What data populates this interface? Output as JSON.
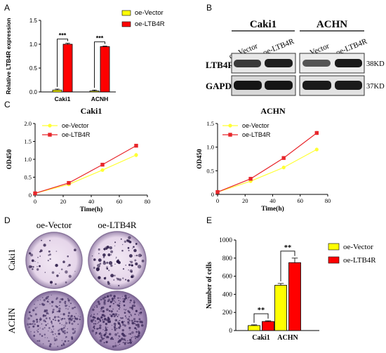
{
  "panels": {
    "A": "A",
    "B": "B",
    "C": "C",
    "D": "D",
    "E": "E"
  },
  "chart_data": [
    {
      "id": "A",
      "type": "bar",
      "categories": [
        "Caki1",
        "ACNH"
      ],
      "series": [
        {
          "name": "oe-Vector",
          "values": [
            0.04,
            0.02
          ],
          "errors": [
            0.02,
            0.02
          ],
          "color": "#ffff00"
        },
        {
          "name": "oe-LTB4R",
          "values": [
            1.0,
            0.95
          ],
          "errors": [
            0.02,
            0.01
          ],
          "color": "#ff0000"
        }
      ],
      "ylabel": "Relative LTB4R expression",
      "ylim": [
        0,
        1.5
      ],
      "yticks": [
        "0.0",
        "0.5",
        "1.0",
        "1.5"
      ],
      "significance": [
        "***",
        "***"
      ],
      "legend": "top-right"
    },
    {
      "id": "C1",
      "type": "line",
      "title": "Caki1",
      "xlabel": "Time(h)",
      "ylabel": "OD450",
      "x": [
        0,
        24,
        48,
        72
      ],
      "xlim": [
        0,
        80
      ],
      "ylim": [
        0,
        2.0
      ],
      "xticks": [
        "0",
        "20",
        "40",
        "60",
        "80"
      ],
      "yticks": [
        "0",
        "0.5",
        "1.0",
        "1.5",
        "2.0"
      ],
      "series": [
        {
          "name": "oe-Vector",
          "values": [
            0.05,
            0.3,
            0.7,
            1.12
          ],
          "errors": [
            0,
            0.02,
            0.02,
            0.06
          ],
          "color": "#ffff33"
        },
        {
          "name": "oe-LTB4R",
          "values": [
            0.05,
            0.34,
            0.85,
            1.38
          ],
          "errors": [
            0,
            0.02,
            0.02,
            0.04
          ],
          "color": "#e8262b"
        }
      ],
      "legend": "top-left"
    },
    {
      "id": "C2",
      "type": "line",
      "title": "ACHN",
      "xlabel": "Time(h)",
      "ylabel": "OD450",
      "x": [
        0,
        24,
        48,
        72
      ],
      "xlim": [
        0,
        80
      ],
      "ylim": [
        0,
        1.5
      ],
      "xticks": [
        "0",
        "20",
        "40",
        "60",
        "80"
      ],
      "yticks": [
        "0",
        "0.5",
        "1.0",
        "1.5"
      ],
      "series": [
        {
          "name": "oe-Vector",
          "values": [
            0.05,
            0.28,
            0.57,
            0.95
          ],
          "errors": [
            0,
            0.01,
            0.01,
            0.01
          ],
          "color": "#ffff33"
        },
        {
          "name": "oe-LTB4R",
          "values": [
            0.05,
            0.33,
            0.77,
            1.3
          ],
          "errors": [
            0,
            0.01,
            0.01,
            0.04
          ],
          "color": "#e8262b"
        }
      ],
      "legend": "top-left"
    },
    {
      "id": "E",
      "type": "bar",
      "categories": [
        "Caki1",
        "ACHN"
      ],
      "series": [
        {
          "name": "oe-Vector",
          "values": [
            55,
            500
          ],
          "errors": [
            8,
            20
          ],
          "color": "#ffff00"
        },
        {
          "name": "oe-LTB4R",
          "values": [
            100,
            750
          ],
          "errors": [
            8,
            50
          ],
          "color": "#ff0000"
        }
      ],
      "ylabel": "Number of cells",
      "ylim": [
        0,
        1000
      ],
      "yticks": [
        "0",
        "200",
        "400",
        "600",
        "800",
        "1000"
      ],
      "significance": [
        "**",
        "**"
      ],
      "legend": "top-right"
    }
  ],
  "blot": {
    "cell_lines": [
      "Caki1",
      "ACHN"
    ],
    "lanes": [
      "oe-Vector",
      "oe-LTB4R"
    ],
    "proteins": [
      "LTB4R",
      "GAPDH"
    ],
    "sizes": [
      "38KD",
      "37KD"
    ]
  },
  "colony": {
    "columns": [
      "oe-Vector",
      "oe-LTB4R"
    ],
    "rows": [
      "Caki1",
      "ACHN"
    ]
  }
}
